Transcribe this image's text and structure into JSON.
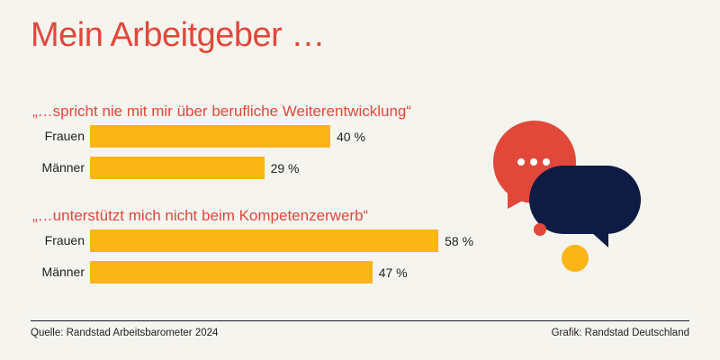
{
  "title": "Mein Arbeitgeber …",
  "colors": {
    "title": "#e2483a",
    "bar": "#fbb516",
    "background": "#f6f4ef",
    "bubble_red": "#e2483a",
    "bubble_navy": "#0e1c44",
    "dot_yellow": "#fbb516"
  },
  "chart_data": [
    {
      "type": "bar",
      "orientation": "horizontal",
      "title": "„…spricht nie mit mir über berufliche Weiterentwicklung“",
      "categories": [
        "Frauen",
        "Männer"
      ],
      "values": [
        40,
        29
      ],
      "labels": [
        "40 %",
        "29 %"
      ],
      "unit": "%"
    },
    {
      "type": "bar",
      "orientation": "horizontal",
      "title": "„…unterstützt mich nicht beim Kompetenzerwerb“",
      "categories": [
        "Frauen",
        "Männer"
      ],
      "values": [
        58,
        47
      ],
      "labels": [
        "58 %",
        "47 %"
      ],
      "unit": "%"
    }
  ],
  "illustration": "speech-bubbles-icon",
  "footer": {
    "source": "Quelle: Randstad Arbeitsbarometer 2024",
    "credit": "Grafik: Randstad Deutschland"
  }
}
